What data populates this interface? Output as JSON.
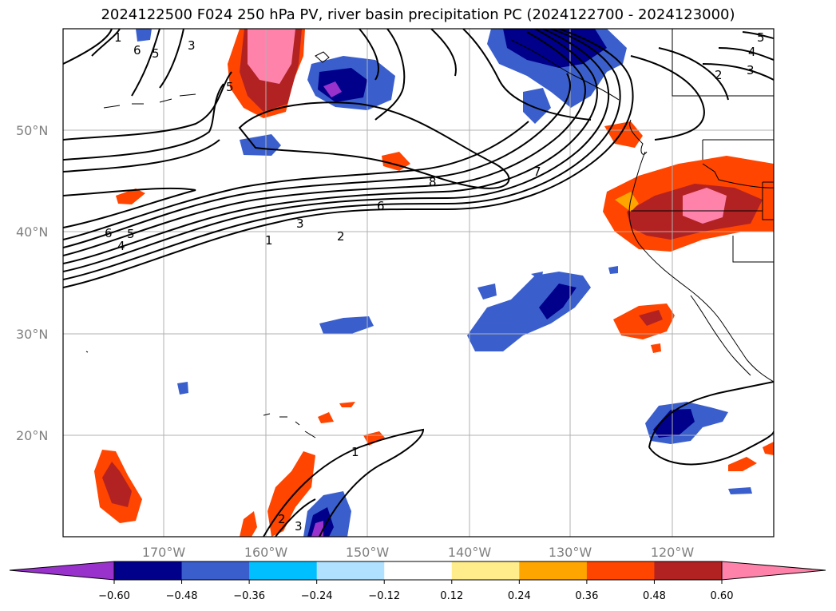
{
  "title": "2024122500 F024 250 hPa PV, river basin precipitation PC (2024122700 - 2024123000)",
  "lon_labels": [
    "170°W",
    "160°W",
    "150°W",
    "140°W",
    "130°W",
    "120°W"
  ],
  "lat_labels": [
    "50°N",
    "40°N",
    "30°N",
    "20°N"
  ],
  "contour_labels": [
    "1",
    "6",
    "5",
    "3",
    "5",
    "8",
    "7",
    "6",
    "3",
    "2",
    "1",
    "6",
    "5",
    "4",
    "2",
    "4",
    "3",
    "5",
    "2",
    "3",
    "1"
  ],
  "colorbar": {
    "ticks": [
      "−0.60",
      "−0.48",
      "−0.36",
      "−0.24",
      "−0.12",
      "0.12",
      "0.24",
      "0.36",
      "0.48",
      "0.60"
    ],
    "colors": [
      "#9932cc",
      "#00008b",
      "#3a5fcd",
      "#00bfff",
      "#b0e2ff",
      "#ffffff",
      "#ffec8b",
      "#ffa500",
      "#ff4500",
      "#b22222",
      "#ff82ab"
    ]
  }
}
